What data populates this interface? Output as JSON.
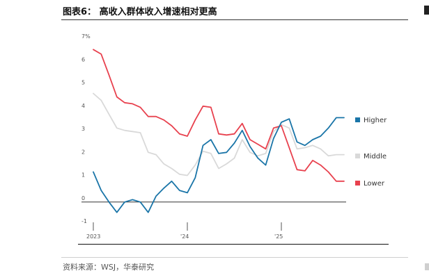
{
  "title": "图表6： 高收入群体收入增速相对更高",
  "source": "资料来源：WSJ，华泰研究",
  "chart_data": {
    "type": "line",
    "title": "",
    "xlabel": "",
    "ylabel": "",
    "y_unit": "%",
    "ylim": [
      -1,
      7
    ],
    "yticks": [
      -1,
      0,
      1,
      2,
      3,
      4,
      5,
      6,
      7
    ],
    "ytick_labels": [
      "-1",
      "0",
      "1",
      "2",
      "3",
      "4",
      "5",
      "6",
      "7%"
    ],
    "x_start": "2023-01",
    "x_end": "2025-09",
    "xticks": [
      {
        "x": "2023-01",
        "label": "2023"
      },
      {
        "x": "2024-01",
        "label": "'24"
      },
      {
        "x": "2025-01",
        "label": "'25"
      }
    ],
    "grid": false,
    "legend": "right",
    "series": [
      {
        "name": "Higher",
        "color": "#1a75a8",
        "x": [
          "2023-01",
          "2023-02",
          "2023-03",
          "2023-04",
          "2023-05",
          "2023-06",
          "2023-07",
          "2023-08",
          "2023-09",
          "2023-10",
          "2023-11",
          "2023-12",
          "2024-01",
          "2024-02",
          "2024-03",
          "2024-04",
          "2024-05",
          "2024-06",
          "2024-07",
          "2024-08",
          "2024-09",
          "2024-10",
          "2024-11",
          "2024-12",
          "2025-01",
          "2025-02",
          "2025-03",
          "2025-04",
          "2025-05",
          "2025-06",
          "2025-07",
          "2025-08",
          "2025-09"
        ],
        "values": [
          1.3,
          0.5,
          0.0,
          -0.45,
          0.0,
          0.1,
          0.0,
          -0.45,
          0.25,
          0.6,
          0.9,
          0.5,
          0.4,
          1.05,
          2.45,
          2.7,
          2.1,
          2.15,
          2.55,
          3.1,
          2.4,
          1.9,
          1.6,
          2.75,
          3.45,
          3.6,
          2.6,
          2.45,
          2.7,
          2.85,
          3.2,
          3.65,
          3.65
        ]
      },
      {
        "name": "Middle",
        "color": "#d9d9d9",
        "x": [
          "2023-01",
          "2023-02",
          "2023-03",
          "2023-04",
          "2023-05",
          "2023-06",
          "2023-07",
          "2023-08",
          "2023-09",
          "2023-10",
          "2023-11",
          "2023-12",
          "2024-01",
          "2024-02",
          "2024-03",
          "2024-04",
          "2024-05",
          "2024-06",
          "2024-07",
          "2024-08",
          "2024-09",
          "2024-10",
          "2024-11",
          "2024-12",
          "2025-01",
          "2025-02",
          "2025-03",
          "2025-04",
          "2025-05",
          "2025-06",
          "2025-07",
          "2025-08",
          "2025-09"
        ],
        "values": [
          4.7,
          4.4,
          3.8,
          3.2,
          3.1,
          3.05,
          3.0,
          2.15,
          2.05,
          1.65,
          1.45,
          1.2,
          1.15,
          1.6,
          2.2,
          2.1,
          1.45,
          1.65,
          1.9,
          2.7,
          2.15,
          2.0,
          2.1,
          3.05,
          3.35,
          3.2,
          2.3,
          2.35,
          2.45,
          2.3,
          2.0,
          2.05,
          2.05
        ]
      },
      {
        "name": "Lower",
        "color": "#e8414e",
        "x": [
          "2023-01",
          "2023-02",
          "2023-03",
          "2023-04",
          "2023-05",
          "2023-06",
          "2023-07",
          "2023-08",
          "2023-09",
          "2023-10",
          "2023-11",
          "2023-12",
          "2024-01",
          "2024-02",
          "2024-03",
          "2024-04",
          "2024-05",
          "2024-06",
          "2024-07",
          "2024-08",
          "2024-09",
          "2024-10",
          "2024-11",
          "2024-12",
          "2025-01",
          "2025-02",
          "2025-03",
          "2025-04",
          "2025-05",
          "2025-06",
          "2025-07",
          "2025-08",
          "2025-09"
        ],
        "values": [
          6.6,
          6.4,
          5.5,
          4.55,
          4.3,
          4.25,
          4.1,
          3.7,
          3.7,
          3.55,
          3.3,
          2.95,
          2.85,
          3.55,
          4.15,
          4.1,
          2.95,
          2.9,
          2.95,
          3.4,
          2.7,
          2.5,
          2.3,
          3.2,
          3.3,
          2.35,
          1.4,
          1.35,
          1.8,
          1.6,
          1.3,
          0.9,
          0.9
        ]
      }
    ]
  }
}
